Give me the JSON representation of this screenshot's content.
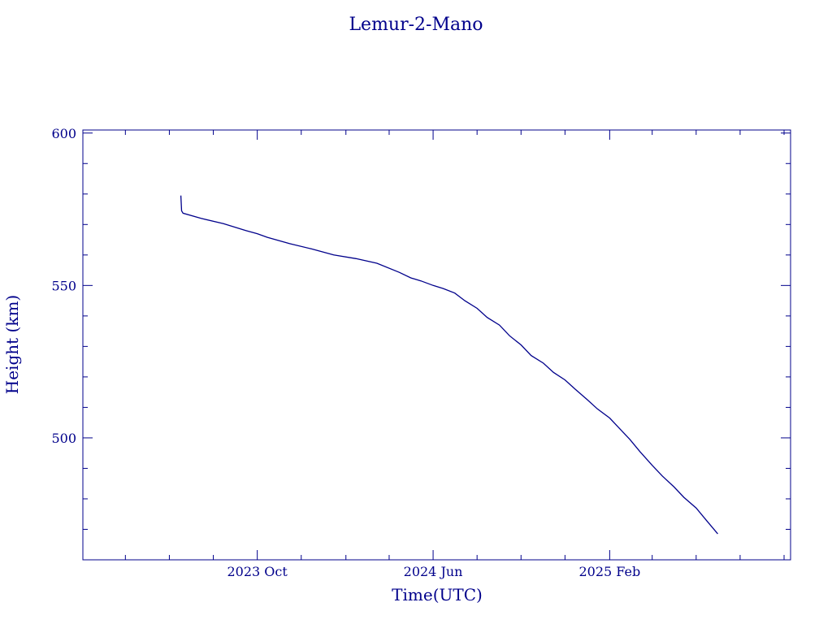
{
  "chart_data": {
    "type": "line",
    "title": "Lemur-2-Mano",
    "xlabel": "Time(UTC)",
    "ylabel": "Height (km)",
    "color": "#00008b",
    "grid": false,
    "ylim": [
      460,
      601
    ],
    "xlim": [
      "2023-02-01",
      "2025-10-10"
    ],
    "x_ticks": [
      {
        "date": "2023-10-01",
        "label": "2023 Oct"
      },
      {
        "date": "2024-06-01",
        "label": "2024 Jun"
      },
      {
        "date": "2025-02-01",
        "label": "2025 Feb"
      }
    ],
    "y_ticks": [
      {
        "value": 500,
        "label": "500"
      },
      {
        "value": 550,
        "label": "550"
      },
      {
        "value": 600,
        "label": "600"
      }
    ],
    "series": [
      {
        "x": [
          "2023-06-17",
          "2023-06-18",
          "2023-06-20",
          "2023-07-15",
          "2023-08-15",
          "2023-09-15",
          "2023-10-01",
          "2023-10-15",
          "2023-11-15",
          "2023-12-15",
          "2024-01-15",
          "2024-02-15",
          "2024-03-15",
          "2024-04-15",
          "2024-05-01",
          "2024-05-15",
          "2024-06-01",
          "2024-06-15",
          "2024-07-01",
          "2024-07-15",
          "2024-08-01",
          "2024-08-15",
          "2024-09-01",
          "2024-09-15",
          "2024-10-01",
          "2024-10-15",
          "2024-11-01",
          "2024-11-15",
          "2024-12-01",
          "2024-12-15",
          "2025-01-01",
          "2025-01-15",
          "2025-02-01",
          "2025-02-15",
          "2025-03-01",
          "2025-03-15",
          "2025-04-01",
          "2025-04-15",
          "2025-05-01",
          "2025-05-15",
          "2025-06-01",
          "2025-06-15",
          "2025-07-01"
        ],
        "y": [
          579.5,
          574.5,
          573.7,
          572.0,
          570.3,
          568.0,
          567.0,
          565.8,
          563.7,
          562.0,
          560.0,
          558.8,
          557.3,
          554.3,
          552.5,
          551.5,
          550.0,
          549.0,
          547.5,
          545.0,
          542.5,
          539.5,
          537.0,
          533.5,
          530.5,
          527.0,
          524.5,
          521.5,
          519.0,
          516.0,
          512.5,
          509.5,
          506.5,
          503.0,
          499.5,
          495.5,
          491.0,
          487.5,
          484.0,
          480.5,
          477.0,
          473.0,
          468.5
        ]
      }
    ]
  }
}
